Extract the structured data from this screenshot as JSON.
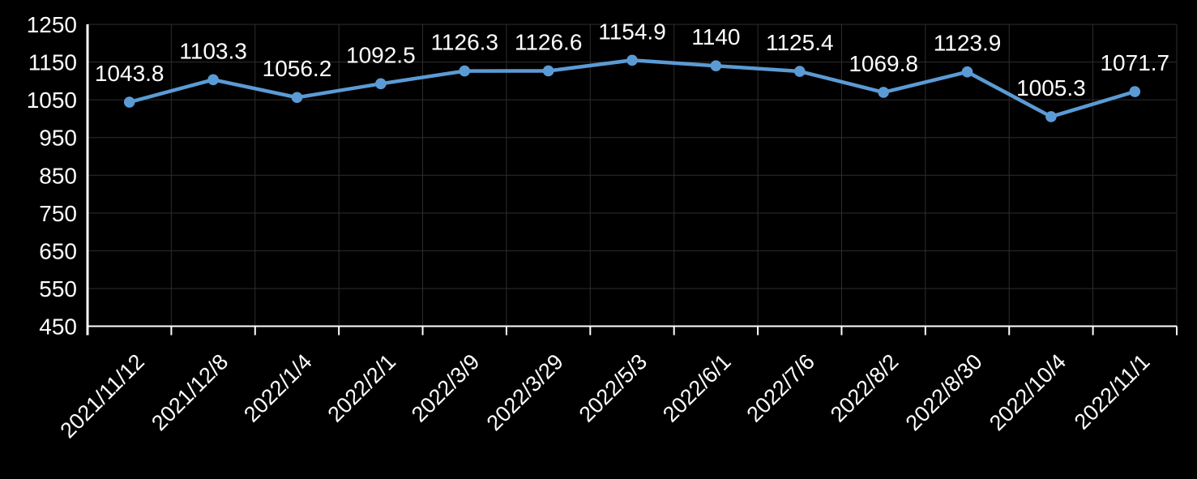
{
  "chart_data": {
    "type": "line",
    "title": "",
    "xlabel": "",
    "ylabel": "",
    "categories": [
      "2021/11/12",
      "2021/12/8",
      "2022/1/4",
      "2022/2/1",
      "2022/3/9",
      "2022/3/29",
      "2022/5/3",
      "2022/6/1",
      "2022/7/6",
      "2022/8/2",
      "2022/8/30",
      "2022/10/4",
      "2022/11/1"
    ],
    "values": [
      1043.8,
      1103.3,
      1056.2,
      1092.5,
      1126.3,
      1126.6,
      1154.9,
      1140,
      1125.4,
      1069.8,
      1123.9,
      1005.3,
      1071.7
    ],
    "data_labels": [
      "1043.8",
      "1103.3",
      "1056.2",
      "1092.5",
      "1126.3",
      "1126.6",
      "1154.9",
      "1140",
      "1125.4",
      "1069.8",
      "1123.9",
      "1005.3",
      "1071.7"
    ],
    "y_ticks": [
      450,
      550,
      650,
      750,
      850,
      950,
      1050,
      1150,
      1250
    ],
    "ylim": [
      450,
      1250
    ],
    "grid": "on",
    "legend_position": "none",
    "colors": {
      "background": "#000000",
      "line": "#5B9BD5",
      "marker": "#5B9BD5",
      "text": "#FFFFFF",
      "gridline": "#2E2E2E",
      "axis": "#FFFFFF"
    }
  }
}
